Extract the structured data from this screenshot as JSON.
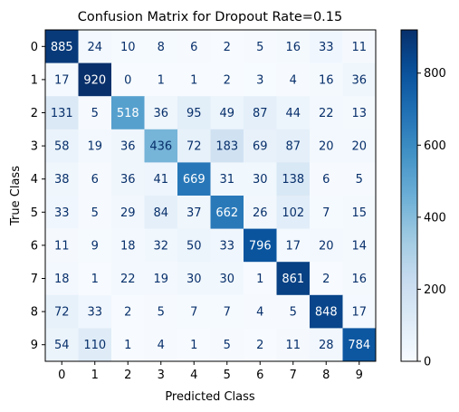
{
  "chart_data": {
    "type": "heatmap",
    "title": "Confusion Matrix for Dropout Rate=0.15",
    "xlabel": "Predicted Class",
    "ylabel": "True Class",
    "x_categories": [
      "0",
      "1",
      "2",
      "3",
      "4",
      "5",
      "6",
      "7",
      "8",
      "9"
    ],
    "y_categories": [
      "0",
      "1",
      "2",
      "3",
      "4",
      "5",
      "6",
      "7",
      "8",
      "9"
    ],
    "values": [
      [
        885,
        24,
        10,
        8,
        6,
        2,
        5,
        16,
        33,
        11
      ],
      [
        17,
        920,
        0,
        1,
        1,
        2,
        3,
        4,
        16,
        36
      ],
      [
        131,
        5,
        518,
        36,
        95,
        49,
        87,
        44,
        22,
        13
      ],
      [
        58,
        19,
        36,
        436,
        72,
        183,
        69,
        87,
        20,
        20
      ],
      [
        38,
        6,
        36,
        41,
        669,
        31,
        30,
        138,
        6,
        5
      ],
      [
        33,
        5,
        29,
        84,
        37,
        662,
        26,
        102,
        7,
        15
      ],
      [
        11,
        9,
        18,
        32,
        50,
        33,
        796,
        17,
        20,
        14
      ],
      [
        18,
        1,
        22,
        19,
        30,
        30,
        1,
        861,
        2,
        16
      ],
      [
        72,
        33,
        2,
        5,
        7,
        7,
        4,
        5,
        848,
        17
      ],
      [
        54,
        110,
        1,
        4,
        1,
        5,
        2,
        11,
        28,
        784
      ]
    ],
    "colormap": "Blues",
    "color_range": [
      0,
      920
    ],
    "colorbar_ticks": [
      0,
      200,
      400,
      600,
      800
    ],
    "grid": false
  }
}
